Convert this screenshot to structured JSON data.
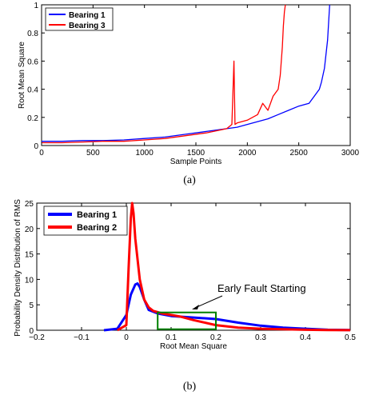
{
  "chart_data": [
    {
      "type": "line",
      "caption": "(a)",
      "xlabel": "Sample Points",
      "ylabel": "Root Mean Square",
      "xlim": [
        0,
        3000
      ],
      "ylim": [
        0,
        1
      ],
      "xticks": [
        0,
        500,
        1000,
        1500,
        2000,
        2500,
        3000
      ],
      "yticks": [
        0,
        0.2,
        0.4,
        0.6,
        0.8,
        1
      ],
      "legend_position": "top-left",
      "series": [
        {
          "name": "Bearing 1",
          "color": "#0000ff",
          "x": [
            0,
            200,
            400,
            600,
            800,
            1000,
            1200,
            1400,
            1600,
            1800,
            1900,
            2000,
            2100,
            2200,
            2300,
            2400,
            2500,
            2600,
            2650,
            2700,
            2720,
            2750,
            2780,
            2800
          ],
          "y": [
            0.03,
            0.03,
            0.035,
            0.035,
            0.04,
            0.05,
            0.06,
            0.08,
            0.1,
            0.12,
            0.13,
            0.15,
            0.17,
            0.19,
            0.22,
            0.25,
            0.28,
            0.3,
            0.35,
            0.4,
            0.45,
            0.55,
            0.75,
            1.0
          ]
        },
        {
          "name": "Bearing 3",
          "color": "#ff0000",
          "x": [
            0,
            200,
            400,
            600,
            800,
            1000,
            1200,
            1400,
            1600,
            1800,
            1850,
            1870,
            1880,
            1900,
            2000,
            2100,
            2150,
            2200,
            2250,
            2300,
            2320,
            2340,
            2350,
            2360,
            2370
          ],
          "y": [
            0.02,
            0.02,
            0.025,
            0.03,
            0.03,
            0.04,
            0.05,
            0.07,
            0.09,
            0.12,
            0.15,
            0.6,
            0.15,
            0.16,
            0.18,
            0.22,
            0.3,
            0.25,
            0.35,
            0.4,
            0.5,
            0.7,
            0.85,
            0.95,
            1.0
          ]
        }
      ]
    },
    {
      "type": "line",
      "caption": "(b)",
      "xlabel": "Root Mean Square",
      "ylabel": "Probability Density Distribution of RMS",
      "xlim": [
        -0.2,
        0.5
      ],
      "ylim": [
        0,
        25
      ],
      "xticks": [
        -0.2,
        -0.1,
        0,
        0.1,
        0.2,
        0.3,
        0.4,
        0.5
      ],
      "xtick_labels": [
        "−0.2",
        "−0.1",
        "0",
        "0.1",
        "0.2",
        "0.3",
        "0.4",
        "0.5"
      ],
      "yticks": [
        0,
        5,
        10,
        15,
        20,
        25
      ],
      "legend_position": "top-left",
      "annotation": {
        "text": "Early Fault Starting",
        "box_x": [
          0.07,
          0.2
        ],
        "box_y": [
          0.2,
          3.5
        ],
        "box_color": "#008000"
      },
      "series": [
        {
          "name": "Bearing 1",
          "color": "#0000ff",
          "x": [
            -0.05,
            -0.02,
            0.0,
            0.01,
            0.02,
            0.025,
            0.03,
            0.04,
            0.05,
            0.07,
            0.1,
            0.15,
            0.2,
            0.25,
            0.3,
            0.35,
            0.4,
            0.45,
            0.5
          ],
          "y": [
            0,
            0.3,
            3.0,
            7.0,
            9.0,
            9.2,
            8.5,
            6.0,
            4.0,
            3.3,
            2.8,
            2.5,
            2.2,
            1.5,
            0.9,
            0.5,
            0.3,
            0.1,
            0.05
          ]
        },
        {
          "name": "Bearing 2",
          "color": "#ff0000",
          "x": [
            -0.02,
            0.0,
            0.005,
            0.01,
            0.013,
            0.016,
            0.02,
            0.03,
            0.04,
            0.05,
            0.06,
            0.08,
            0.1,
            0.12,
            0.15,
            0.2,
            0.25,
            0.3,
            0.35,
            0.4,
            0.45,
            0.5
          ],
          "y": [
            0,
            1.0,
            12.0,
            22.0,
            25.0,
            23.0,
            18.0,
            10.0,
            6.0,
            4.5,
            3.8,
            3.3,
            3.0,
            2.7,
            2.0,
            1.0,
            0.5,
            0.3,
            0.2,
            0.1,
            0.05,
            0.02
          ]
        }
      ]
    }
  ]
}
